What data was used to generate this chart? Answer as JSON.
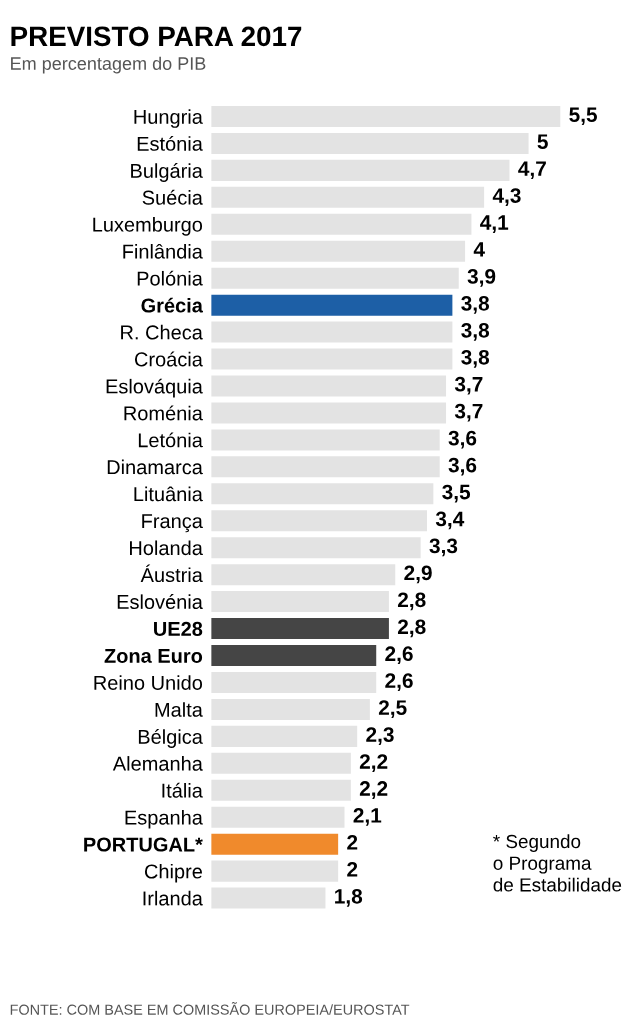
{
  "chart_data": {
    "type": "bar",
    "orientation": "horizontal",
    "title": "PREVISTO PARA 2017",
    "subtitle": "Em percentagem do PIB",
    "categories": [
      "Hungria",
      "Estónia",
      "Bulgária",
      "Suécia",
      "Luxemburgo",
      "Finlândia",
      "Polónia",
      "Grécia",
      "R. Checa",
      "Croácia",
      "Eslováquia",
      "Roménia",
      "Letónia",
      "Dinamarca",
      "Lituânia",
      "França",
      "Holanda",
      "Áustria",
      "Eslovénia",
      "UE28",
      "Zona Euro",
      "Reino Unido",
      "Malta",
      "Bélgica",
      "Alemanha",
      "Itália",
      "Espanha",
      "PORTUGAL*",
      "Chipre",
      "Irlanda"
    ],
    "values": [
      5.5,
      5,
      4.7,
      4.3,
      4.1,
      4,
      3.9,
      3.8,
      3.8,
      3.8,
      3.7,
      3.7,
      3.6,
      3.6,
      3.5,
      3.4,
      3.3,
      2.9,
      2.8,
      2.8,
      2.6,
      2.6,
      2.5,
      2.3,
      2.2,
      2.2,
      2.1,
      2,
      2,
      1.8
    ],
    "colors": [
      "#e3e3e3",
      "#e3e3e3",
      "#e3e3e3",
      "#e3e3e3",
      "#e3e3e3",
      "#e3e3e3",
      "#e3e3e3",
      "#1d5fa6",
      "#e3e3e3",
      "#e3e3e3",
      "#e3e3e3",
      "#e3e3e3",
      "#e3e3e3",
      "#e3e3e3",
      "#e3e3e3",
      "#e3e3e3",
      "#e3e3e3",
      "#e3e3e3",
      "#e3e3e3",
      "#454545",
      "#454545",
      "#e3e3e3",
      "#e3e3e3",
      "#e3e3e3",
      "#e3e3e3",
      "#e3e3e3",
      "#e3e3e3",
      "#f08a2c",
      "#e3e3e3",
      "#e3e3e3"
    ],
    "value_labels": [
      "5,5",
      "5",
      "4,7",
      "4,3",
      "4,1",
      "4",
      "3,9",
      "3,8",
      "3,8",
      "3,8",
      "3,7",
      "3,7",
      "3,6",
      "3,6",
      "3,5",
      "3,4",
      "3,3",
      "2,9",
      "2,8",
      "2,8",
      "2,6",
      "2,6",
      "2,5",
      "2,3",
      "2,2",
      "2,2",
      "2,1",
      "2",
      "2",
      "1,8"
    ],
    "annotations": [
      "* Segundo o Programa de Estabilidade",
      "FONTE: COM BASE EM COMISSÃO EUROPEIA/EUROSTAT"
    ]
  }
}
